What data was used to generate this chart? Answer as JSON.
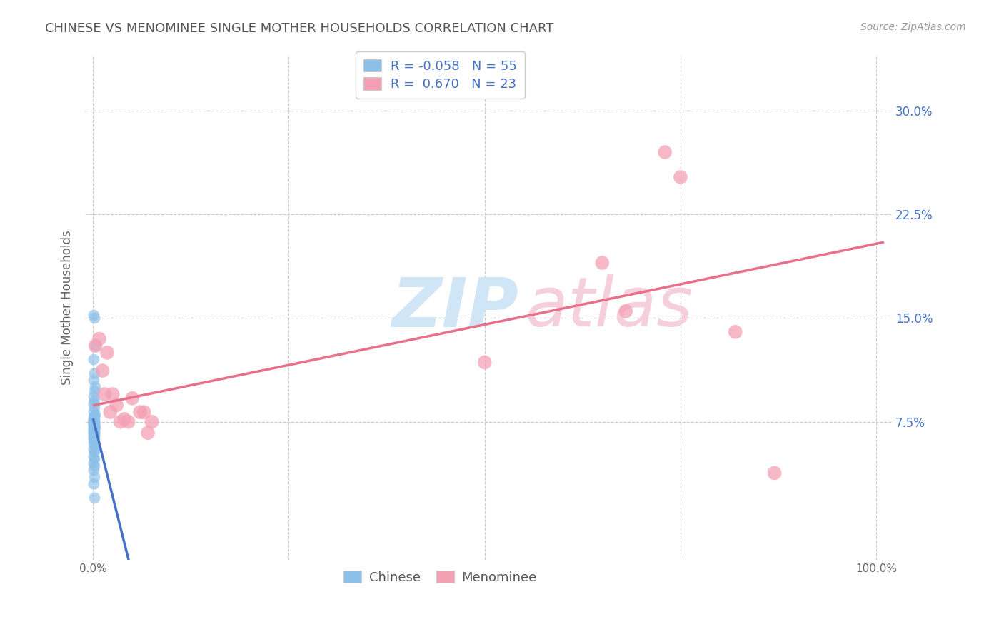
{
  "title": "CHINESE VS MENOMINEE SINGLE MOTHER HOUSEHOLDS CORRELATION CHART",
  "source": "Source: ZipAtlas.com",
  "ylabel": "Single Mother Households",
  "xlim": [
    -0.01,
    1.02
  ],
  "ylim": [
    -0.025,
    0.34
  ],
  "xtick_vals": [
    0.0,
    0.25,
    0.5,
    0.75,
    1.0
  ],
  "xtick_labels": [
    "0.0%",
    "",
    "",
    "",
    "100.0%"
  ],
  "ytick_vals": [
    0.075,
    0.15,
    0.225,
    0.3
  ],
  "ytick_labels": [
    "7.5%",
    "15.0%",
    "22.5%",
    "30.0%"
  ],
  "chinese_R": -0.058,
  "chinese_N": 55,
  "menominee_R": 0.67,
  "menominee_N": 23,
  "chinese_color": "#8BBFE8",
  "menominee_color": "#F4A0B4",
  "chinese_line_color": "#4472C4",
  "menominee_line_color": "#E8708A",
  "chinese_x": [
    0.001,
    0.002,
    0.003,
    0.001,
    0.002,
    0.001,
    0.003,
    0.002,
    0.001,
    0.002,
    0.001,
    0.002,
    0.001,
    0.003,
    0.002,
    0.001,
    0.002,
    0.001,
    0.002,
    0.001,
    0.001,
    0.002,
    0.001,
    0.002,
    0.001,
    0.002,
    0.001,
    0.002,
    0.003,
    0.001,
    0.002,
    0.001,
    0.002,
    0.001,
    0.002,
    0.001,
    0.002,
    0.001,
    0.002,
    0.001,
    0.002,
    0.001,
    0.002,
    0.001,
    0.003,
    0.001,
    0.002,
    0.001,
    0.002,
    0.001,
    0.002,
    0.001,
    0.002,
    0.001,
    0.002
  ],
  "chinese_y": [
    0.152,
    0.15,
    0.13,
    0.12,
    0.11,
    0.105,
    0.1,
    0.097,
    0.093,
    0.09,
    0.088,
    0.085,
    0.082,
    0.08,
    0.079,
    0.078,
    0.077,
    0.076,
    0.076,
    0.075,
    0.075,
    0.074,
    0.074,
    0.073,
    0.073,
    0.072,
    0.072,
    0.071,
    0.071,
    0.07,
    0.07,
    0.069,
    0.068,
    0.068,
    0.067,
    0.067,
    0.066,
    0.066,
    0.065,
    0.064,
    0.063,
    0.062,
    0.06,
    0.059,
    0.057,
    0.055,
    0.053,
    0.05,
    0.048,
    0.045,
    0.043,
    0.04,
    0.035,
    0.03,
    0.02
  ],
  "menominee_x": [
    0.003,
    0.008,
    0.012,
    0.015,
    0.018,
    0.022,
    0.025,
    0.03,
    0.035,
    0.04,
    0.045,
    0.05,
    0.06,
    0.065,
    0.07,
    0.075,
    0.5,
    0.65,
    0.68,
    0.73,
    0.75,
    0.82,
    0.87
  ],
  "menominee_y": [
    0.13,
    0.135,
    0.112,
    0.095,
    0.125,
    0.082,
    0.095,
    0.087,
    0.075,
    0.077,
    0.075,
    0.092,
    0.082,
    0.082,
    0.067,
    0.075,
    0.118,
    0.19,
    0.155,
    0.27,
    0.252,
    0.14,
    0.038
  ],
  "background_color": "#ffffff",
  "grid_color": "#cccccc",
  "title_fontsize": 13,
  "source_fontsize": 10,
  "tick_fontsize": 11,
  "ylabel_fontsize": 12,
  "legend_fontsize": 13,
  "watermark_zip_color": "#d0e5f5",
  "watermark_atlas_color": "#f5d0dc"
}
